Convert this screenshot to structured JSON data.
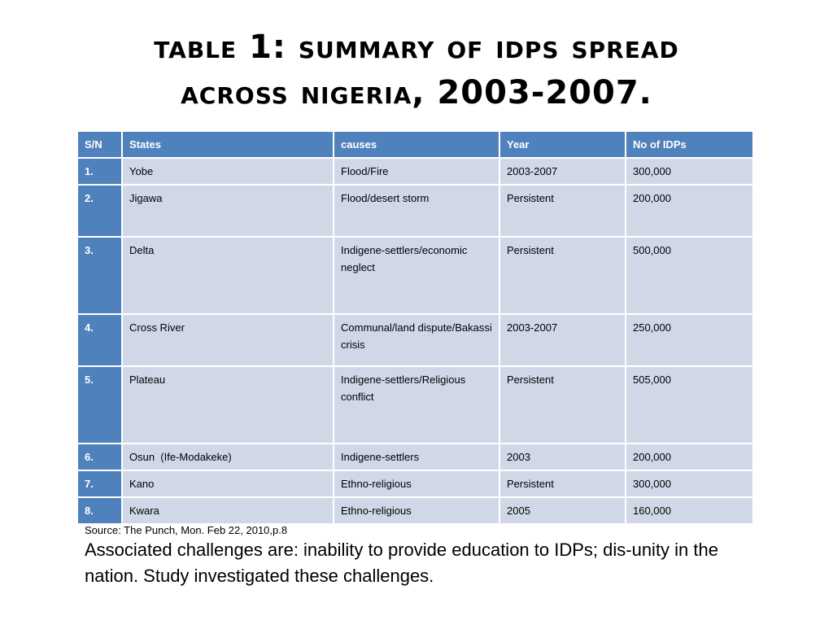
{
  "title": {
    "line1": "Table 1: Summary of IDPs spread",
    "line2": "across Nigeria, 2003-2007."
  },
  "table": {
    "headers": [
      "S/N",
      "States",
      "causes",
      "Year",
      "No of IDPs"
    ],
    "rows": [
      [
        "1.",
        "Yobe",
        "Flood/Fire",
        "2003-2007",
        "300,000"
      ],
      [
        "2.",
        "Jigawa",
        "Flood/desert storm",
        "Persistent",
        "200,000"
      ],
      [
        "3.",
        "Delta",
        "Indigene-settlers/economic neglect",
        "Persistent",
        "500,000"
      ],
      [
        "4.",
        "Cross River",
        "Communal/land dispute/Bakassi crisis",
        "2003-2007",
        "250,000"
      ],
      [
        "5.",
        "Plateau",
        "Indigene-settlers/Religious conflict",
        "Persistent",
        "505,000"
      ],
      [
        "6.",
        "Osun  (Ife-Modakeke)",
        "Indigene-settlers",
        "2003",
        "200,000"
      ],
      [
        "7.",
        "Kano",
        "Ethno-religious",
        "Persistent",
        "300,000"
      ],
      [
        "8.",
        "Kwara",
        "Ethno-religious",
        "2005",
        "160,000"
      ]
    ]
  },
  "source": "Source: The Punch, Mon. Feb 22, 2010,p.8",
  "note": "Associated challenges are: inability to provide education to IDPs; dis-unity in the nation. Study investigated these challenges.",
  "colors": {
    "header_bg": "#4f81bd",
    "cell_bg": "#d0d8e8",
    "text": "#000000"
  }
}
